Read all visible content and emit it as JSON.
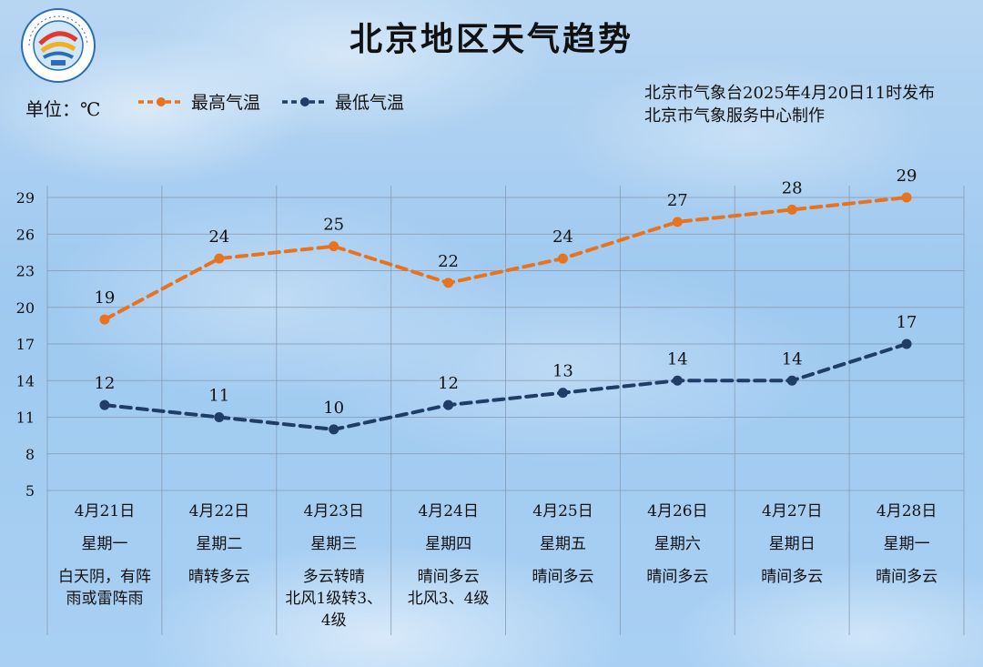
{
  "title": "北京地区天气趋势",
  "unit_label": "单位：℃",
  "issuer_line1": "北京市气象台2025年4月20日11时发布",
  "issuer_line2": "北京市气象服务中心制作",
  "logo": {
    "icon": "meteorological-service-logo",
    "text": "METEOROLOGICAL SERVICE · BEIJING · 气象北京"
  },
  "chart_data": {
    "type": "line",
    "title": "北京地区天气趋势",
    "ylabel": "单位：℃",
    "ylim": [
      5,
      29
    ],
    "yticks": [
      5,
      8,
      11,
      14,
      17,
      20,
      23,
      26,
      29
    ],
    "grid": true,
    "legend_position": "top-left",
    "categories": [
      "4月21日",
      "4月22日",
      "4月23日",
      "4月24日",
      "4月25日",
      "4月26日",
      "4月27日",
      "4月28日"
    ],
    "weekdays": [
      "星期一",
      "星期二",
      "星期三",
      "星期四",
      "星期五",
      "星期六",
      "星期日",
      "星期一"
    ],
    "conditions": [
      [
        "白天阴，有阵",
        "雨或雷阵雨"
      ],
      [
        "晴转多云"
      ],
      [
        "多云转晴",
        "北风1级转3、",
        "4级"
      ],
      [
        "晴间多云",
        "北风3、4级"
      ],
      [
        "晴间多云"
      ],
      [
        "晴间多云"
      ],
      [
        "晴间多云"
      ],
      [
        "晴间多云"
      ]
    ],
    "series": [
      {
        "name": "最高气温",
        "color": "#e8731e",
        "values": [
          19,
          24,
          25,
          22,
          24,
          27,
          28,
          29
        ]
      },
      {
        "name": "最低气温",
        "color": "#1f3d66",
        "values": [
          12,
          11,
          10,
          12,
          13,
          14,
          14,
          17
        ]
      }
    ]
  }
}
